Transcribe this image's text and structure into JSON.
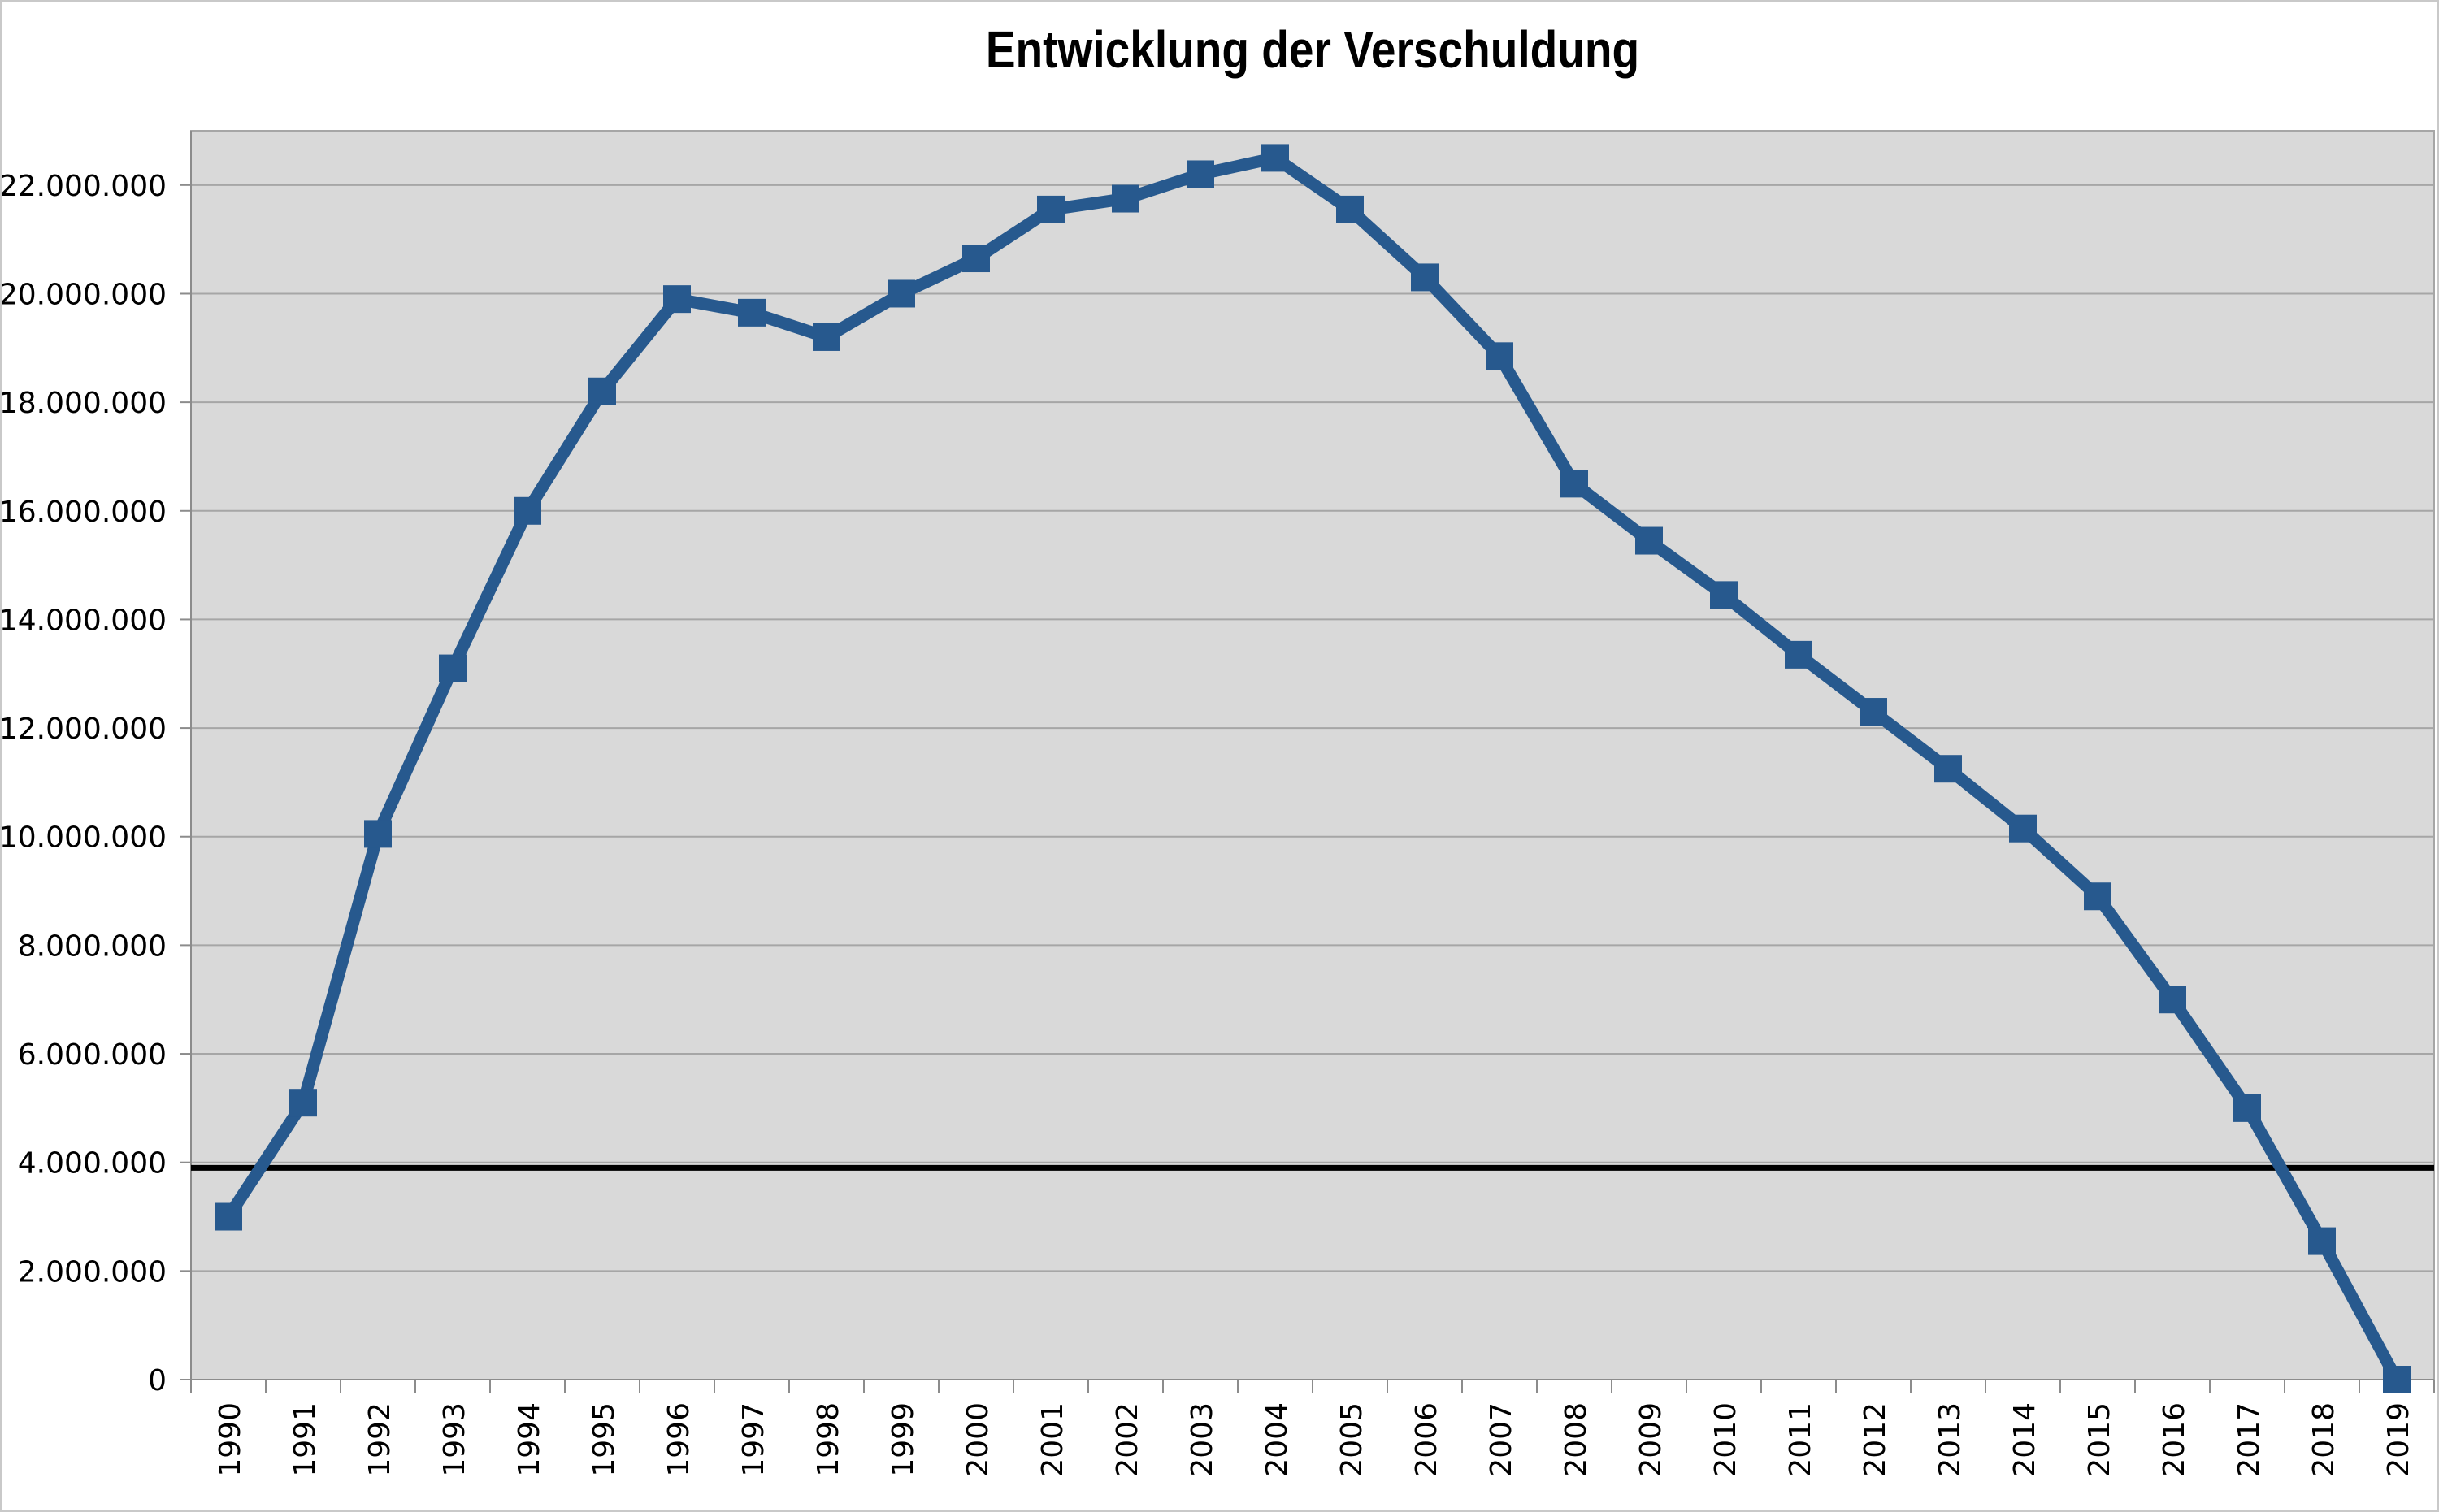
{
  "chart_data": {
    "type": "line",
    "title": "Entwicklung der Verschuldung",
    "categories": [
      "1990",
      "1991",
      "1992",
      "1993",
      "1994",
      "1995",
      "1996",
      "1997",
      "1998",
      "1999",
      "2000",
      "2001",
      "2002",
      "2003",
      "2004",
      "2005",
      "2006",
      "2007",
      "2008",
      "2009",
      "2010",
      "2011",
      "2012",
      "2013",
      "2014",
      "2015",
      "2016",
      "2017",
      "2018",
      "2019"
    ],
    "values": [
      3000000,
      5100000,
      10050000,
      13100000,
      16000000,
      18200000,
      19900000,
      19650000,
      19200000,
      20000000,
      20650000,
      21550000,
      21750000,
      22200000,
      22500000,
      21550000,
      20300000,
      18850000,
      16500000,
      15450000,
      14450000,
      13350000,
      12300000,
      11250000,
      10150000,
      8900000,
      7000000,
      5000000,
      2550000,
      0
    ],
    "reference_line": {
      "value": 3900000,
      "color": "#000000"
    },
    "xlabel": "",
    "ylabel": "",
    "ylim": [
      0,
      23000000
    ],
    "ytick_step": 2000000,
    "ytick_values": [
      0,
      2000000,
      4000000,
      6000000,
      8000000,
      10000000,
      12000000,
      14000000,
      16000000,
      18000000,
      20000000,
      22000000
    ],
    "ytick_labels": [
      "0",
      "2.000.000",
      "4.000.000",
      "6.000.000",
      "8.000.000",
      "10.000.000",
      "12.000.000",
      "14.000.000",
      "16.000.000",
      "18.000.000",
      "20.000.000",
      "22.000.000"
    ],
    "grid": true,
    "legend_position": "none",
    "marker": "square",
    "colors": {
      "series_line": "#27598e",
      "plot_background": "#d9d9d9",
      "gridline": "#a6a6a6",
      "axis": "#8c8c8c",
      "tick": "#8c8c8c",
      "label_text": "#000000",
      "reference_line": "#000000"
    }
  }
}
